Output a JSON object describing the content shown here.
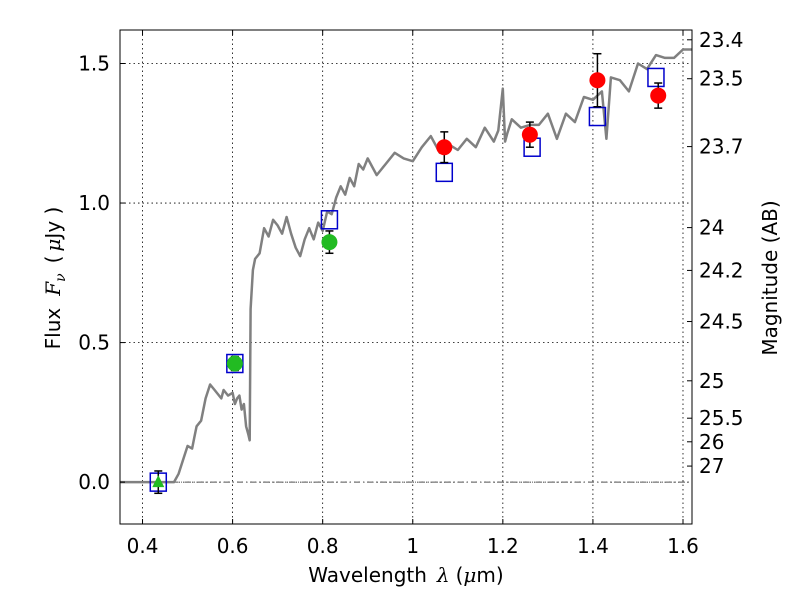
{
  "chart_data": {
    "type": "line",
    "title": "",
    "xlabel": "Wavelength",
    "xlabel_symbol": "λ",
    "xlabel_unit_open": "(",
    "xlabel_unit_mu": "μ",
    "xlabel_unit_rest": "m)",
    "ylabel": "Flux",
    "ylabel_symbol": "F",
    "ylabel_subscript": "ν",
    "ylabel_unit_open": "(",
    "ylabel_unit_mu": "μ",
    "ylabel_unit_rest": "Jy )",
    "y2label": "Magnitude (AB)",
    "xlim": [
      0.35,
      1.62
    ],
    "ylim": [
      -0.15,
      1.62
    ],
    "grid": true,
    "x_ticks": [
      0.4,
      0.6,
      0.8,
      1.0,
      1.2,
      1.4,
      1.6
    ],
    "x_tick_labels": [
      "0.4",
      "0.6",
      "0.8",
      "1",
      "1.2",
      "1.4",
      "1.6"
    ],
    "y_ticks": [
      0.0,
      0.5,
      1.0,
      1.5
    ],
    "y_tick_labels": [
      "0.0",
      "0.5",
      "1.0",
      "1.5"
    ],
    "right_ticks": [
      {
        "mag": 23.4,
        "label": "23.4"
      },
      {
        "mag": 23.5,
        "label": "23.5"
      },
      {
        "mag": 23.7,
        "label": "23.7"
      },
      {
        "mag": 24.0,
        "label": "24"
      },
      {
        "mag": 24.2,
        "label": "24.2"
      },
      {
        "mag": 24.5,
        "label": "24.5"
      },
      {
        "mag": 25.0,
        "label": "25"
      },
      {
        "mag": 25.5,
        "label": "25.5"
      },
      {
        "mag": 26.0,
        "label": "26"
      },
      {
        "mag": 27.0,
        "label": "27"
      }
    ],
    "zero_line": {
      "y": 0.0,
      "style": "dash-dot",
      "color": "#555555"
    },
    "colors": {
      "model": "#808080",
      "model_points": "#0000cc",
      "red_points": "#ff0000",
      "green_points": "#22bb22",
      "errorbar": "#000000"
    },
    "model_spectrum": {
      "x": [
        0.35,
        0.44,
        0.46,
        0.47,
        0.48,
        0.49,
        0.5,
        0.51,
        0.515,
        0.52,
        0.53,
        0.54,
        0.55,
        0.56,
        0.57,
        0.575,
        0.58,
        0.59,
        0.6,
        0.605,
        0.61,
        0.615,
        0.62,
        0.625,
        0.63,
        0.635,
        0.638,
        0.64,
        0.645,
        0.65,
        0.66,
        0.67,
        0.68,
        0.69,
        0.7,
        0.71,
        0.72,
        0.73,
        0.74,
        0.75,
        0.76,
        0.77,
        0.78,
        0.79,
        0.8,
        0.81,
        0.82,
        0.83,
        0.84,
        0.85,
        0.86,
        0.87,
        0.88,
        0.89,
        0.9,
        0.92,
        0.94,
        0.96,
        0.98,
        1.0,
        1.02,
        1.04,
        1.06,
        1.08,
        1.1,
        1.12,
        1.14,
        1.16,
        1.18,
        1.19,
        1.2,
        1.205,
        1.21,
        1.22,
        1.24,
        1.26,
        1.28,
        1.3,
        1.32,
        1.34,
        1.36,
        1.38,
        1.4,
        1.42,
        1.43,
        1.44,
        1.46,
        1.48,
        1.5,
        1.52,
        1.54,
        1.56,
        1.58,
        1.6,
        1.62
      ],
      "y": [
        0.0,
        0.0,
        0.0,
        0.0,
        0.03,
        0.08,
        0.13,
        0.12,
        0.16,
        0.2,
        0.22,
        0.3,
        0.35,
        0.33,
        0.31,
        0.3,
        0.33,
        0.31,
        0.32,
        0.28,
        0.3,
        0.31,
        0.26,
        0.28,
        0.2,
        0.17,
        0.15,
        0.62,
        0.76,
        0.8,
        0.82,
        0.91,
        0.88,
        0.94,
        0.92,
        0.89,
        0.95,
        0.89,
        0.84,
        0.81,
        0.87,
        0.91,
        0.87,
        0.93,
        0.9,
        0.97,
        0.96,
        1.02,
        1.06,
        1.03,
        1.09,
        1.06,
        1.14,
        1.12,
        1.16,
        1.1,
        1.14,
        1.18,
        1.16,
        1.15,
        1.2,
        1.24,
        1.18,
        1.21,
        1.19,
        1.23,
        1.2,
        1.27,
        1.22,
        1.26,
        1.41,
        1.22,
        1.25,
        1.3,
        1.27,
        1.28,
        1.28,
        1.32,
        1.23,
        1.32,
        1.29,
        1.38,
        1.37,
        1.4,
        1.23,
        1.45,
        1.44,
        1.4,
        1.5,
        1.48,
        1.53,
        1.52,
        1.52,
        1.55,
        1.55
      ]
    },
    "model_points": [
      {
        "x": 0.435,
        "y": 0.0
      },
      {
        "x": 0.605,
        "y": 0.425
      },
      {
        "x": 0.815,
        "y": 0.94
      },
      {
        "x": 1.07,
        "y": 1.11
      },
      {
        "x": 1.265,
        "y": 1.2
      },
      {
        "x": 1.41,
        "y": 1.31
      },
      {
        "x": 1.54,
        "y": 1.45
      }
    ],
    "observed_red": [
      {
        "x": 1.07,
        "y": 1.2,
        "err": 0.055
      },
      {
        "x": 1.26,
        "y": 1.245,
        "err": 0.045
      },
      {
        "x": 1.41,
        "y": 1.44,
        "err": 0.095
      },
      {
        "x": 1.545,
        "y": 1.385,
        "err": 0.045
      }
    ],
    "observed_green": [
      {
        "x": 0.605,
        "y": 0.425,
        "err": 0.025,
        "marker": "circle"
      },
      {
        "x": 0.815,
        "y": 0.86,
        "err": 0.04,
        "marker": "circle"
      },
      {
        "x": 0.435,
        "y": 0.0,
        "err": 0.04,
        "marker": "triangle"
      }
    ]
  }
}
